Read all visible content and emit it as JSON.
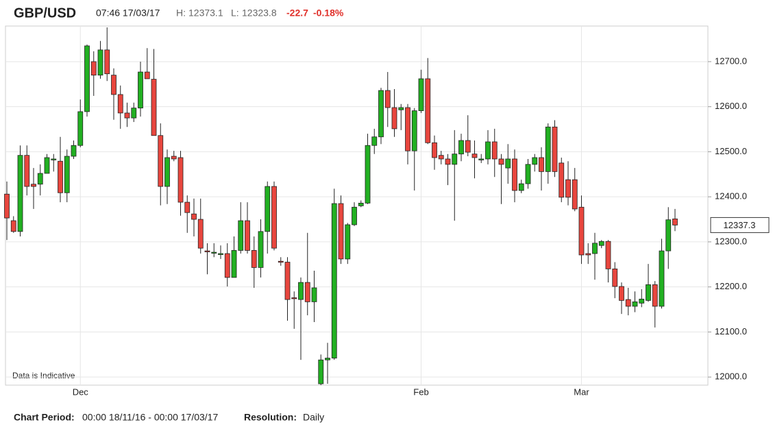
{
  "header": {
    "symbol": "GBP/USD",
    "time": "07:46 17/03/17",
    "high_label": "H:",
    "low_label": "L:",
    "change": "-22.7",
    "change_pct": "-0.18%"
  },
  "chart_data": {
    "type": "candlestick",
    "watermark": "Data is Indicative",
    "categories": [
      null,
      null,
      null,
      null,
      null,
      null,
      null,
      null,
      null,
      null,
      null,
      "Dec",
      null,
      null,
      null,
      null,
      null,
      null,
      null,
      null,
      null,
      null,
      null,
      null,
      null,
      null,
      null,
      null,
      null,
      null,
      null,
      null,
      null,
      null,
      null,
      null,
      null,
      null,
      null,
      null,
      null,
      null,
      null,
      null,
      null,
      null,
      null,
      null,
      null,
      null,
      null,
      null,
      null,
      null,
      null,
      null,
      null,
      null,
      null,
      null,
      null,
      null,
      "Feb",
      null,
      null,
      null,
      null,
      null,
      null,
      null,
      null,
      null,
      null,
      null,
      null,
      null,
      null,
      null,
      null,
      null,
      null,
      null,
      null,
      null,
      null,
      null,
      "Mar",
      null,
      null,
      null,
      null,
      null,
      null,
      null,
      null,
      null,
      null,
      null,
      null,
      null,
      null
    ],
    "open": [
      12406,
      12347,
      12323,
      12492,
      12428,
      12428,
      12452,
      12482,
      12479,
      12409,
      12490,
      12514,
      12589,
      12700,
      12670,
      12726,
      12670,
      12627,
      12586,
      12575,
      12597,
      12677,
      12661,
      12536,
      12423,
      12490,
      12487,
      12388,
      12362,
      12350,
      12280,
      12277,
      12274,
      12274,
      12221,
      12281,
      12347,
      12281,
      12243,
      12323,
      12423,
      12257,
      12255,
      12176,
      12172,
      12210,
      12167,
      11985,
      12038,
      12042,
      12385,
      12262,
      12338,
      12380,
      12386,
      12514,
      12533,
      12636,
      12598,
      12593,
      12598,
      12502,
      12591,
      12662,
      12520,
      12492,
      12484,
      12472,
      12495,
      12525,
      12495,
      12482,
      12484,
      12522,
      12484,
      12464,
      12484,
      12414,
      12429,
      12472,
      12487,
      12456,
      12555,
      12475,
      12438,
      12438,
      12377,
      12274,
      12274,
      12292,
      12301,
      12240,
      12201,
      12172,
      12157,
      12164,
      12170,
      12205,
      12157,
      12280,
      12351
    ],
    "high": [
      12434,
      12357,
      12514,
      12514,
      12464,
      12472,
      12495,
      12495,
      12533,
      12505,
      12525,
      12616,
      12738,
      12723,
      12746,
      12776,
      12685,
      12647,
      12609,
      12609,
      12700,
      12730,
      12728,
      12563,
      12505,
      12502,
      12502,
      12403,
      12396,
      12396,
      12297,
      12297,
      12292,
      12297,
      12312,
      12388,
      12388,
      12312,
      12350,
      12434,
      12434,
      12266,
      12266,
      12190,
      12221,
      12320,
      12236,
      12050,
      12076,
      12418,
      12403,
      12342,
      12388,
      12392,
      12540,
      12551,
      12642,
      12677,
      12639,
      12606,
      12606,
      12597,
      12682,
      12708,
      12536,
      12502,
      12495,
      12548,
      12540,
      12581,
      12525,
      12495,
      12548,
      12551,
      12495,
      12517,
      12505,
      12438,
      12484,
      12495,
      12510,
      12563,
      12570,
      12487,
      12479,
      12464,
      12403,
      12297,
      12320,
      12304,
      12304,
      12255,
      12210,
      12198,
      12190,
      12195,
      12251,
      12213,
      12307,
      12377,
      12373.1
    ],
    "low": [
      12304,
      12320,
      12312,
      12403,
      12373,
      12403,
      12452,
      12456,
      12388,
      12388,
      12484,
      12510,
      12578,
      12624,
      12662,
      12657,
      12571,
      12551,
      12555,
      12566,
      12578,
      12662,
      12540,
      12381,
      12384,
      12479,
      12358,
      12320,
      12312,
      12274,
      12228,
      12266,
      12262,
      12201,
      12221,
      12274,
      12274,
      12198,
      12221,
      12274,
      12281,
      12247,
      12125,
      12107,
      12038,
      12137,
      12122,
      11982,
      11985,
      12038,
      12251,
      12251,
      12335,
      12377,
      12384,
      12495,
      12517,
      12555,
      12533,
      12548,
      12472,
      12414,
      12586,
      12517,
      12460,
      12472,
      12426,
      12347,
      12479,
      12490,
      12441,
      12475,
      12472,
      12444,
      12384,
      12429,
      12388,
      12408,
      12418,
      12456,
      12414,
      12429,
      12444,
      12388,
      12381,
      12368,
      12251,
      12251,
      12216,
      12286,
      12210,
      12175,
      12140,
      12137,
      12144,
      12155,
      12167,
      12110,
      12152,
      12240,
      12323.8
    ],
    "close": [
      12353,
      12323,
      12492,
      12423,
      12423,
      12452,
      12487,
      12484,
      12409,
      12490,
      12514,
      12589,
      12735,
      12670,
      12726,
      12673,
      12627,
      12586,
      12575,
      12597,
      12677,
      12662,
      12536,
      12423,
      12487,
      12484,
      12388,
      12365,
      12350,
      12286,
      12278,
      12277,
      12274,
      12221,
      12281,
      12347,
      12281,
      12243,
      12323,
      12423,
      12286,
      12255,
      12172,
      12174,
      12210,
      12167,
      12198,
      12038,
      12042,
      12385,
      12262,
      12338,
      12377,
      12386,
      12514,
      12533,
      12636,
      12598,
      12551,
      12598,
      12502,
      12591,
      12662,
      12520,
      12487,
      12484,
      12472,
      12495,
      12525,
      12499,
      12487,
      12484,
      12522,
      12484,
      12472,
      12484,
      12414,
      12429,
      12472,
      12487,
      12456,
      12555,
      12456,
      12399,
      12399,
      12373,
      12271,
      12271,
      12297,
      12301,
      12240,
      12201,
      12170,
      12157,
      12167,
      12173,
      12205,
      12157,
      12280,
      12349,
      12337.3
    ],
    "up_color": "#22b022",
    "down_color": "#e8463e",
    "ylim": [
      11982,
      12779
    ],
    "yticks": [
      {
        "value": 12000,
        "label": "12000.0"
      },
      {
        "value": 12100,
        "label": "12100.0"
      },
      {
        "value": 12200,
        "label": "12200.0"
      },
      {
        "value": 12300,
        "label": "12300.0"
      },
      {
        "value": 12400,
        "label": "12400.0"
      },
      {
        "value": 12500,
        "label": "12500.0"
      },
      {
        "value": 12600,
        "label": "12600.0"
      },
      {
        "value": 12700,
        "label": "12700.0"
      }
    ],
    "grid": true
  },
  "footer": {
    "period_label": "Chart Period:",
    "period": "00:00 18/11/16 - 00:00 17/03/17",
    "resolution_label": "Resolution:",
    "resolution": "Daily"
  }
}
